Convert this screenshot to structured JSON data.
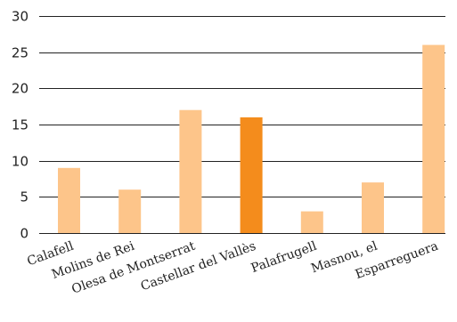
{
  "chart_data": {
    "type": "bar",
    "categories": [
      "Calafell",
      "Molins de Rei",
      "Olesa de Montserrat",
      "Castellar del Vallès",
      "Palafrugell",
      "Masnou, el",
      "Esparreguera"
    ],
    "values": [
      9,
      6,
      17,
      16,
      3,
      7,
      26
    ],
    "highlight_index": 3,
    "ylim": [
      0,
      30
    ],
    "yticks": [
      0,
      5,
      10,
      15,
      20,
      25,
      30
    ],
    "grid": true,
    "legend": "none",
    "colors": {
      "bar": "#fdc58a",
      "highlight": "#f48c1c",
      "grid": "#222222",
      "text": "#222222"
    }
  }
}
